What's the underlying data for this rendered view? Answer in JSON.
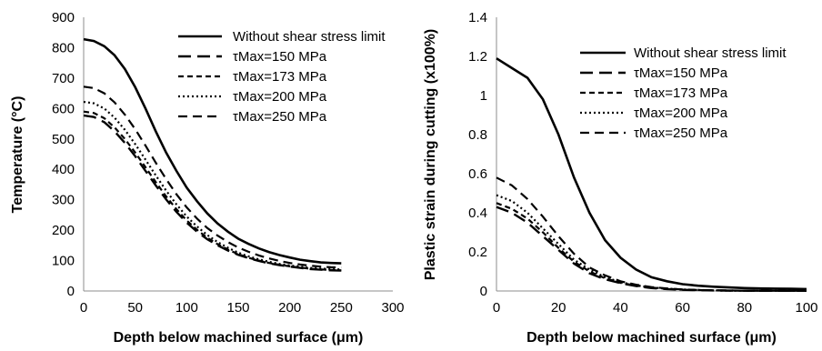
{
  "chart_data": [
    {
      "type": "line",
      "xlabel": "Depth below machined surface (μm)",
      "ylabel": "Temperature (°C)",
      "xlim": [
        0,
        300
      ],
      "ylim": [
        0,
        900
      ],
      "xticks": [
        "0",
        "50",
        "100",
        "150",
        "200",
        "250",
        "300"
      ],
      "yticks": [
        "0",
        "100",
        "200",
        "300",
        "400",
        "500",
        "600",
        "700",
        "800",
        "900"
      ],
      "grid": false,
      "legend_position": "top-right",
      "x": [
        0,
        10,
        20,
        30,
        40,
        50,
        60,
        70,
        80,
        90,
        100,
        110,
        120,
        130,
        140,
        150,
        160,
        170,
        180,
        190,
        200,
        210,
        220,
        230,
        240,
        250
      ],
      "series": [
        {
          "name": "Without shear stress limit",
          "dash": "solid",
          "stroke_width": 2.6,
          "values": [
            828,
            822,
            805,
            775,
            730,
            670,
            600,
            525,
            455,
            395,
            340,
            295,
            255,
            222,
            195,
            172,
            155,
            140,
            128,
            118,
            110,
            103,
            98,
            94,
            92,
            91
          ]
        },
        {
          "name": "τMax=150 MPa",
          "dash": "14,7",
          "stroke_width": 2.4,
          "values": [
            577,
            572,
            555,
            525,
            487,
            443,
            395,
            347,
            301,
            260,
            225,
            195,
            170,
            150,
            133,
            119,
            108,
            99,
            91,
            85,
            80,
            76,
            72,
            70,
            68,
            67
          ]
        },
        {
          "name": "τMax=173 MPa",
          "dash": "6,4",
          "stroke_width": 2.2,
          "values": [
            590,
            585,
            568,
            538,
            500,
            455,
            407,
            358,
            311,
            269,
            232,
            201,
            175,
            154,
            136,
            121,
            109,
            100,
            92,
            86,
            81,
            77,
            73,
            71,
            69,
            68
          ]
        },
        {
          "name": "τMax=200 MPa",
          "dash": "2,3",
          "stroke_width": 2.2,
          "values": [
            622,
            617,
            600,
            570,
            530,
            483,
            432,
            380,
            330,
            285,
            245,
            212,
            184,
            161,
            142,
            126,
            114,
            104,
            96,
            89,
            84,
            80,
            76,
            74,
            72,
            71
          ]
        },
        {
          "name": "τMax=250 MPa",
          "dash": "10,6",
          "stroke_width": 2.2,
          "values": [
            672,
            667,
            650,
            620,
            580,
            532,
            478,
            422,
            368,
            318,
            275,
            238,
            207,
            182,
            161,
            143,
            129,
            117,
            107,
            99,
            92,
            87,
            83,
            80,
            78,
            77
          ]
        }
      ]
    },
    {
      "type": "line",
      "xlabel": "Depth below machined surface (μm)",
      "ylabel": "Plastic strain during cutting (x100%)",
      "xlim": [
        0,
        100
      ],
      "ylim": [
        0,
        1.4
      ],
      "xticks": [
        "0",
        "20",
        "40",
        "60",
        "80",
        "100"
      ],
      "yticks": [
        "0",
        "0.2",
        "0.4",
        "0.6",
        "0.8",
        "1",
        "1.2",
        "1.4"
      ],
      "grid": false,
      "legend_position": "top-right",
      "x": [
        0,
        5,
        10,
        15,
        20,
        25,
        30,
        35,
        40,
        45,
        50,
        55,
        60,
        65,
        70,
        75,
        80,
        85,
        90,
        95,
        100
      ],
      "series": [
        {
          "name": "Without shear stress limit",
          "dash": "solid",
          "stroke_width": 2.6,
          "values": [
            1.19,
            1.14,
            1.09,
            0.98,
            0.8,
            0.58,
            0.4,
            0.26,
            0.17,
            0.11,
            0.07,
            0.05,
            0.035,
            0.027,
            0.022,
            0.018,
            0.015,
            0.013,
            0.012,
            0.011,
            0.01
          ]
        },
        {
          "name": "τMax=150 MPa",
          "dash": "14,7",
          "stroke_width": 2.4,
          "values": [
            0.43,
            0.4,
            0.35,
            0.28,
            0.21,
            0.14,
            0.09,
            0.06,
            0.04,
            0.025,
            0.015,
            0.01,
            0.006,
            0.004,
            0.003,
            0.002,
            0.0015,
            0.001,
            0.001,
            0.001,
            0.001
          ]
        },
        {
          "name": "τMax=173 MPa",
          "dash": "6,4",
          "stroke_width": 2.2,
          "values": [
            0.45,
            0.42,
            0.37,
            0.3,
            0.22,
            0.15,
            0.1,
            0.065,
            0.042,
            0.027,
            0.017,
            0.011,
            0.007,
            0.005,
            0.003,
            0.002,
            0.0015,
            0.001,
            0.001,
            0.001,
            0.001
          ]
        },
        {
          "name": "τMax=200 MPa",
          "dash": "2,3",
          "stroke_width": 2.2,
          "values": [
            0.49,
            0.46,
            0.4,
            0.32,
            0.24,
            0.16,
            0.11,
            0.07,
            0.045,
            0.029,
            0.018,
            0.012,
            0.008,
            0.005,
            0.003,
            0.002,
            0.0015,
            0.001,
            0.001,
            0.001,
            0.001
          ]
        },
        {
          "name": "τMax=250 MPa",
          "dash": "10,6",
          "stroke_width": 2.2,
          "values": [
            0.58,
            0.54,
            0.47,
            0.38,
            0.28,
            0.19,
            0.12,
            0.08,
            0.05,
            0.032,
            0.02,
            0.013,
            0.008,
            0.005,
            0.004,
            0.003,
            0.002,
            0.0015,
            0.001,
            0.001,
            0.001
          ]
        }
      ]
    }
  ]
}
